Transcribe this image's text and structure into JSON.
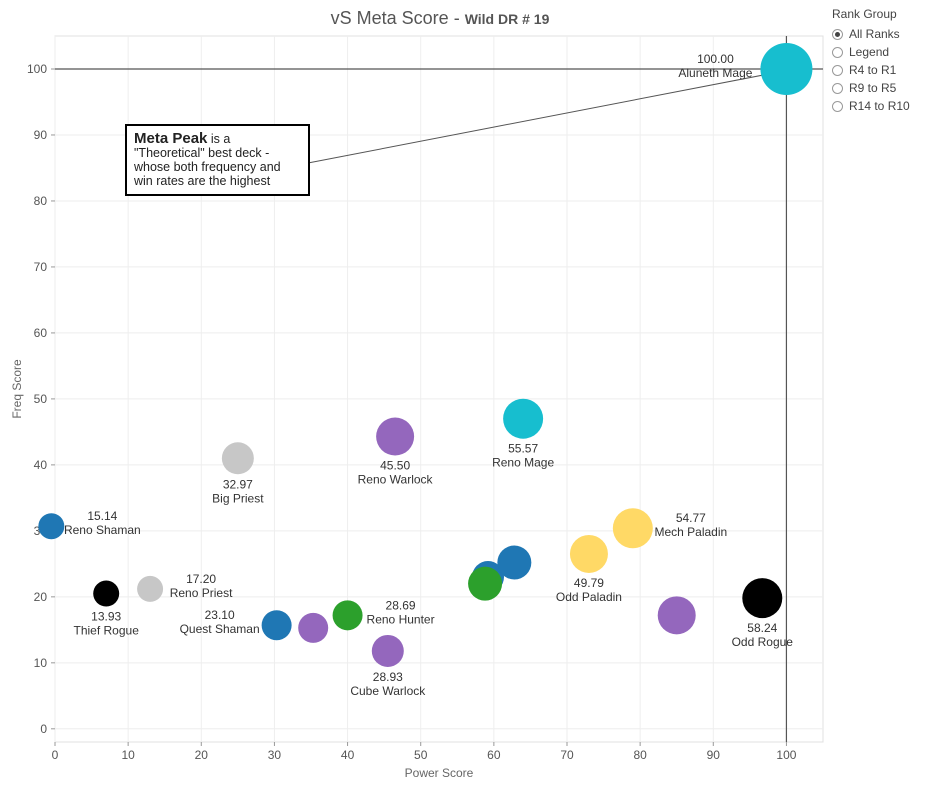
{
  "title": "vS Meta Score",
  "subtitle": "Wild DR # 19",
  "callout": {
    "bold": "Meta Peak",
    "text": "is a \"Theoretical\" best deck - whose both frequency and win rates are the highest"
  },
  "legend": {
    "title": "Rank Group",
    "options": [
      {
        "label": "All Ranks",
        "selected": true
      },
      {
        "label": "Legend",
        "selected": false
      },
      {
        "label": "R4 to R1",
        "selected": false
      },
      {
        "label": "R9 to R5",
        "selected": false
      },
      {
        "label": "R14 to R10",
        "selected": false
      }
    ]
  },
  "chart_data": {
    "type": "scatter",
    "title": "vS Meta Score",
    "subtitle": "Wild DR # 19",
    "xlabel": "Power Score",
    "ylabel": "Freq Score",
    "xlim": [
      0,
      105
    ],
    "ylim": [
      -2,
      105
    ],
    "xticks": [
      "0",
      "10",
      "20",
      "30",
      "40",
      "50",
      "60",
      "70",
      "80",
      "90",
      "100"
    ],
    "yticks": [
      "0",
      "10",
      "20",
      "30",
      "40",
      "50",
      "60",
      "70",
      "80",
      "90",
      "100"
    ],
    "reference_lines": {
      "x": 100,
      "y": 100
    },
    "colors": {
      "cyan": "#17becf",
      "grey": "#c7c7c7",
      "purple": "#9467bd",
      "blue": "#1f77b4",
      "green": "#2ca02c",
      "yellow": "#ffd966",
      "black": "#000000"
    },
    "points": [
      {
        "x": 100,
        "y": 100,
        "size": 26,
        "color": "cyan",
        "score": "100.00",
        "name": "Aluneth Mage",
        "pos": "tl"
      },
      {
        "x": 64,
        "y": 47,
        "size": 20,
        "color": "cyan",
        "score": "55.57",
        "name": "Reno Mage",
        "pos": "b"
      },
      {
        "x": 25,
        "y": 41,
        "size": 16,
        "color": "grey",
        "score": "32.97",
        "name": "Big Priest",
        "pos": "b"
      },
      {
        "x": 46.5,
        "y": 44.3,
        "size": 19,
        "color": "purple",
        "score": "45.50",
        "name": "Reno Warlock",
        "pos": "b"
      },
      {
        "x": -0.5,
        "y": 30.7,
        "size": 13,
        "color": "blue",
        "score": "15.14",
        "name": "Reno Shaman",
        "pos": "r"
      },
      {
        "x": 7,
        "y": 20.5,
        "size": 13,
        "color": "black",
        "score": "13.93",
        "name": "Thief Rogue",
        "pos": "b"
      },
      {
        "x": 13,
        "y": 21.2,
        "size": 13,
        "color": "grey",
        "score": "17.20",
        "name": "Reno Priest",
        "pos": "r"
      },
      {
        "x": 30.3,
        "y": 15.7,
        "size": 15,
        "color": "blue",
        "score": "23.10",
        "name": "Quest Shaman",
        "pos": "l"
      },
      {
        "x": 35.3,
        "y": 15.3,
        "size": 15,
        "color": "purple",
        "score": "",
        "name": "",
        "pos": "none"
      },
      {
        "x": 40,
        "y": 17.2,
        "size": 15,
        "color": "green",
        "score": "28.69",
        "name": "Reno Hunter",
        "pos": "r"
      },
      {
        "x": 45.5,
        "y": 11.8,
        "size": 16,
        "color": "purple",
        "score": "28.93",
        "name": "Cube Warlock",
        "pos": "b"
      },
      {
        "x": 59.2,
        "y": 23,
        "size": 16,
        "color": "blue",
        "score": "",
        "name": "",
        "pos": "none"
      },
      {
        "x": 62.8,
        "y": 25.2,
        "size": 17,
        "color": "blue",
        "score": "",
        "name": "",
        "pos": "none"
      },
      {
        "x": 58.8,
        "y": 22,
        "size": 17,
        "color": "green",
        "score": "",
        "name": "",
        "pos": "none"
      },
      {
        "x": 73,
        "y": 26.5,
        "size": 19,
        "color": "yellow",
        "score": "49.79",
        "name": "Odd Paladin",
        "pos": "b"
      },
      {
        "x": 79,
        "y": 30.4,
        "size": 20,
        "color": "yellow",
        "score": "54.77",
        "name": "Mech Paladin",
        "pos": "r"
      },
      {
        "x": 85,
        "y": 17.2,
        "size": 19,
        "color": "purple",
        "score": "",
        "name": "",
        "pos": "none"
      },
      {
        "x": 96.7,
        "y": 19.8,
        "size": 20,
        "color": "black",
        "score": "58.24",
        "name": "Odd Rogue",
        "pos": "b"
      }
    ]
  }
}
